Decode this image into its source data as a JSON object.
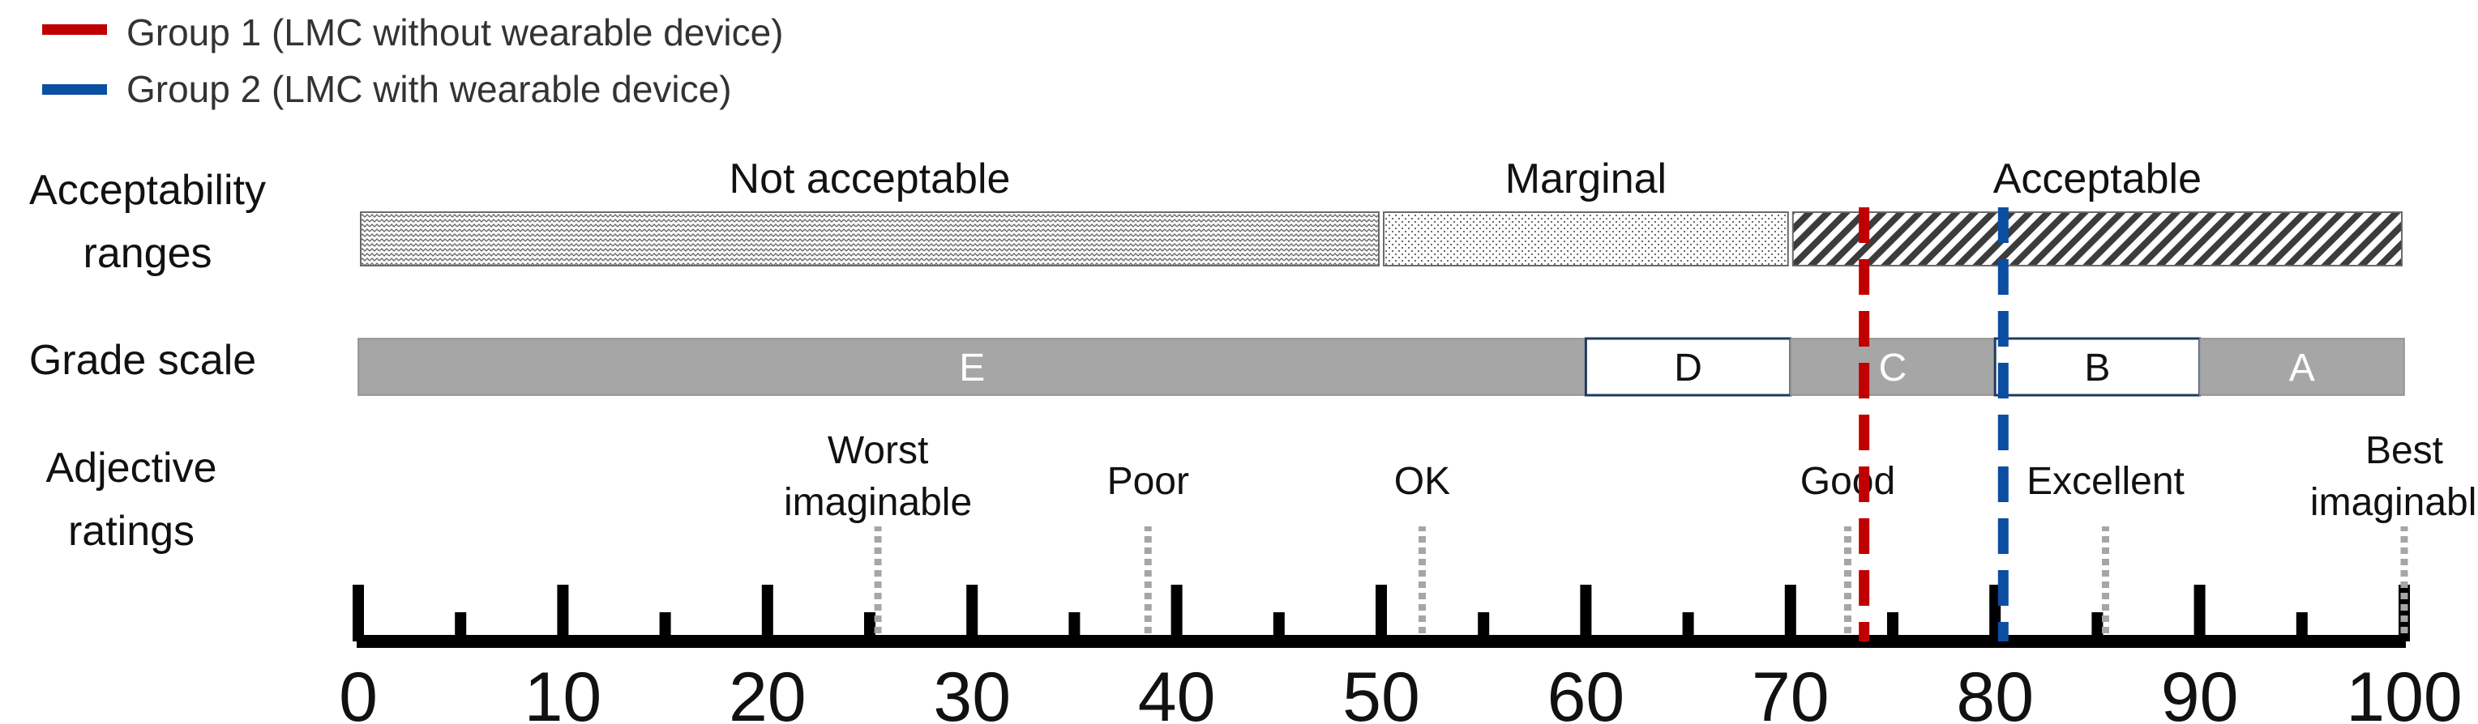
{
  "legend": [
    {
      "label": "Group 1 (LMC without wearable device)",
      "color": "#c00000"
    },
    {
      "label": "Group 2 (LMC with wearable device)",
      "color": "#0b4ea2"
    }
  ],
  "row_labels": {
    "acceptability": [
      "Acceptability",
      "ranges"
    ],
    "grade": [
      "Grade scale"
    ],
    "adjective": [
      "Adjective",
      "ratings"
    ]
  },
  "acceptability_ranges": [
    {
      "label": "Not acceptable",
      "from": 0,
      "to": 50,
      "pattern": "wavy"
    },
    {
      "label": "Marginal",
      "from": 50,
      "to": 70,
      "pattern": "dots"
    },
    {
      "label": "Acceptable",
      "from": 70,
      "to": 100,
      "pattern": "hatch"
    }
  ],
  "grade_scale": [
    {
      "grade": "E",
      "from": 0,
      "to": 60,
      "fill": "gray"
    },
    {
      "grade": "D",
      "from": 60,
      "to": 70,
      "fill": "white"
    },
    {
      "grade": "C",
      "from": 70,
      "to": 80,
      "fill": "gray"
    },
    {
      "grade": "B",
      "from": 80,
      "to": 90,
      "fill": "white"
    },
    {
      "grade": "A",
      "from": 90,
      "to": 100,
      "fill": "gray"
    }
  ],
  "adjective_ratings": [
    {
      "lines": [
        "Worst",
        "imaginable"
      ],
      "value": 25.4
    },
    {
      "lines": [
        "Poor"
      ],
      "value": 38.6
    },
    {
      "lines": [
        "OK"
      ],
      "value": 52
    },
    {
      "lines": [
        "Good"
      ],
      "value": 72.8
    },
    {
      "lines": [
        "Excellent"
      ],
      "value": 85.4
    },
    {
      "lines": [
        "Best",
        "imaginable"
      ],
      "value": 100
    }
  ],
  "group_scores": [
    {
      "group": "Group 1",
      "value": 73.6,
      "color": "#c00000"
    },
    {
      "group": "Group 2",
      "value": 80.4,
      "color": "#0b4ea2"
    }
  ],
  "axis": {
    "min": 0,
    "max": 100,
    "major_ticks": [
      0,
      10,
      20,
      30,
      40,
      50,
      60,
      70,
      80,
      90,
      100
    ],
    "minor_ticks": [
      5,
      15,
      25,
      35,
      45,
      55,
      65,
      75,
      85,
      95
    ]
  }
}
